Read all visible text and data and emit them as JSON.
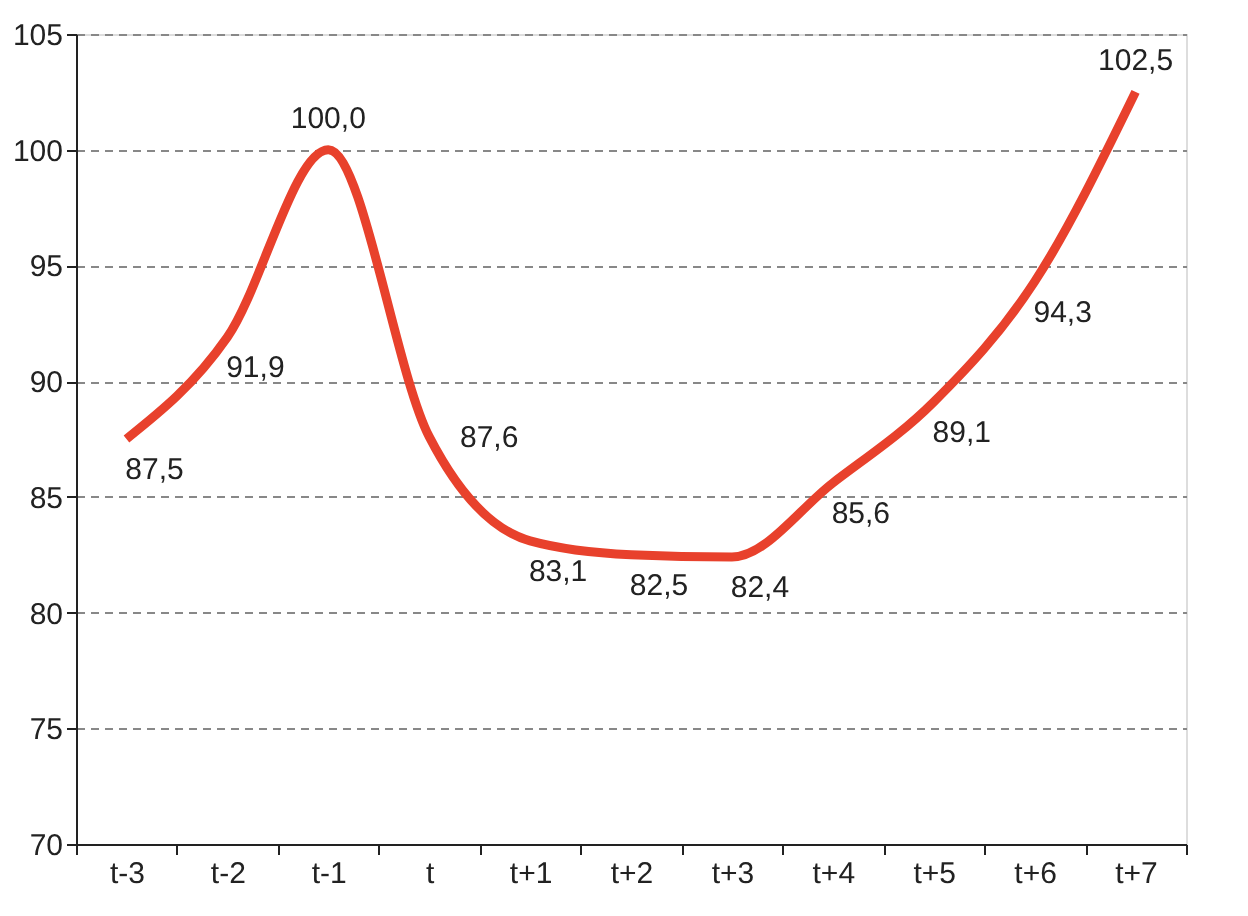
{
  "chart_data": {
    "type": "line",
    "categories": [
      "t-3",
      "t-2",
      "t-1",
      "t",
      "t+1",
      "t+2",
      "t+3",
      "t+4",
      "t+5",
      "t+6",
      "t+7"
    ],
    "series": [
      {
        "color": "#e8412c",
        "values": [
          87.5,
          91.9,
          100.0,
          87.6,
          83.1,
          82.5,
          82.4,
          85.6,
          89.1,
          94.3,
          102.5
        ],
        "value_labels": [
          "87,5",
          "91,9",
          "100,0",
          "87,6",
          "83,1",
          "82,5",
          "82,4",
          "85,6",
          "89,1",
          "94,3",
          "102,5"
        ]
      }
    ],
    "ylim": [
      70,
      105
    ],
    "yticks": [
      70,
      75,
      80,
      85,
      90,
      95,
      100,
      105
    ],
    "grid": "y",
    "marker": "none",
    "line_style": "solid"
  }
}
